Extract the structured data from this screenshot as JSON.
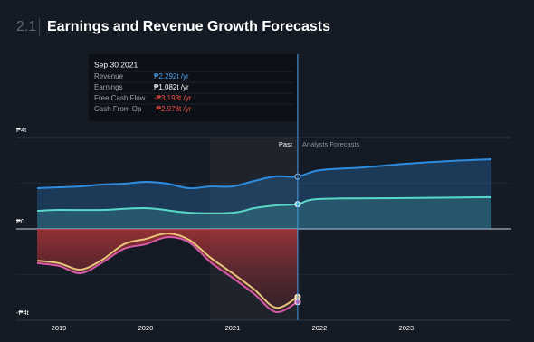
{
  "section": "2.1",
  "chart_data": {
    "type": "line",
    "title": "Earnings and Revenue Growth Forecasts",
    "xlim": [
      2018.51,
      2024.21
    ],
    "xticks": [
      2019,
      2020,
      2021,
      2022,
      2023
    ],
    "ylim": [
      -4,
      4
    ],
    "yticks": [
      {
        "value": -4,
        "label": "-₱4t"
      },
      {
        "value": 0,
        "label": "₱0"
      },
      {
        "value": 4,
        "label": "₱4t"
      }
    ],
    "minor_yticks": [
      -2,
      2
    ],
    "past_label": "Past",
    "forecast_label": "Analysts Forecasts",
    "series": [
      {
        "name": "Revenue",
        "color": "#2d8ce0",
        "x": [
          2018.75,
          2019,
          2019.25,
          2019.5,
          2019.75,
          2020,
          2020.25,
          2020.5,
          2020.75,
          2021,
          2021.25,
          2021.5,
          2021.75,
          2022,
          2022.5,
          2023,
          2023.5,
          2023.98
        ],
        "values": [
          1.78,
          1.82,
          1.86,
          1.94,
          1.98,
          2.06,
          1.98,
          1.78,
          1.86,
          1.86,
          2.1,
          2.3,
          2.292,
          2.57,
          2.69,
          2.85,
          2.97,
          3.05
        ]
      },
      {
        "name": "Earnings",
        "color": "#58d8c8",
        "x": [
          2018.75,
          2019,
          2019.5,
          2020,
          2020.5,
          2021,
          2021.25,
          2021.5,
          2021.75,
          2022,
          2023,
          2023.98
        ],
        "values": [
          0.79,
          0.83,
          0.83,
          0.91,
          0.71,
          0.71,
          0.91,
          1.03,
          1.082,
          1.31,
          1.35,
          1.39
        ]
      },
      {
        "name": "Free Cash Flow",
        "color": "#d65aa8",
        "x": [
          2018.75,
          2019,
          2019.25,
          2019.5,
          2019.75,
          2020,
          2020.25,
          2020.5,
          2020.75,
          2021,
          2021.25,
          2021.5,
          2021.75
        ],
        "values": [
          -1.5,
          -1.62,
          -1.94,
          -1.47,
          -0.87,
          -0.67,
          -0.36,
          -0.59,
          -1.47,
          -2.14,
          -2.85,
          -3.64,
          -3.198
        ]
      },
      {
        "name": "Cash From Op",
        "color": "#e8c47a",
        "x": [
          2018.75,
          2019,
          2019.25,
          2019.5,
          2019.75,
          2020,
          2020.25,
          2020.5,
          2020.75,
          2021,
          2021.25,
          2021.5,
          2021.75
        ],
        "values": [
          -1.39,
          -1.5,
          -1.78,
          -1.35,
          -0.67,
          -0.44,
          -0.2,
          -0.48,
          -1.27,
          -1.94,
          -2.65,
          -3.45,
          -2.978
        ]
      }
    ],
    "tooltip": {
      "date": "Sep 30 2021",
      "rows": [
        {
          "label": "Revenue",
          "value": "₱2.292t /yr",
          "color": "#4aa3f0"
        },
        {
          "label": "Earnings",
          "value": "₱1.082t /yr",
          "color": "#ffffff"
        },
        {
          "label": "Free Cash Flow",
          "value": "-₱3.198t /yr",
          "color": "#f0504a"
        },
        {
          "label": "Cash From Op",
          "value": "-₱2.978t /yr",
          "color": "#f0504a"
        }
      ]
    }
  }
}
